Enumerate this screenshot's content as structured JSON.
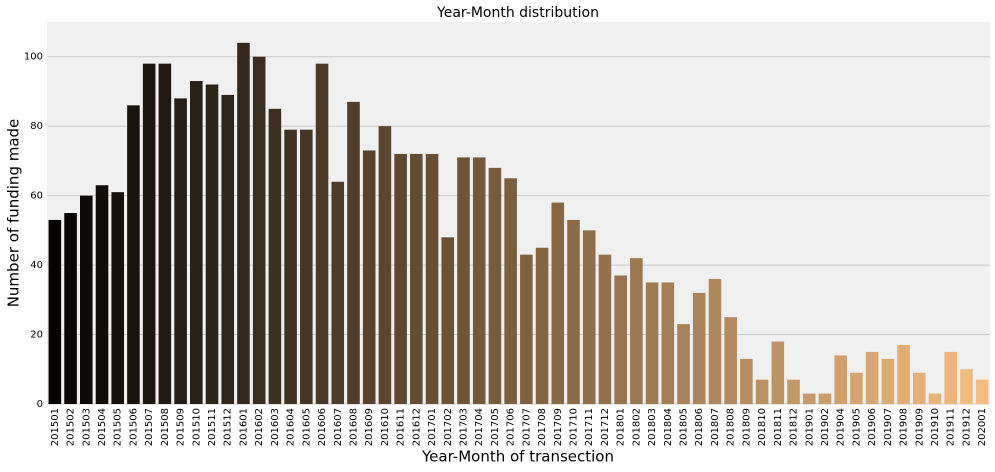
{
  "chart_data": {
    "type": "bar",
    "title": "Year-Month distribution",
    "xlabel": "Year-Month of transection",
    "ylabel": "Number of funding made",
    "categories": [
      "201501",
      "201502",
      "201503",
      "201504",
      "201505",
      "201506",
      "201507",
      "201508",
      "201509",
      "201510",
      "201511",
      "201512",
      "201601",
      "201602",
      "201603",
      "201604",
      "201605",
      "201606",
      "201607",
      "201608",
      "201609",
      "201610",
      "201611",
      "201612",
      "201701",
      "201702",
      "201703",
      "201704",
      "201705",
      "201706",
      "201707",
      "201708",
      "201709",
      "201710",
      "201711",
      "201712",
      "201801",
      "201802",
      "201803",
      "201804",
      "201805",
      "201806",
      "201807",
      "201808",
      "201809",
      "201810",
      "201811",
      "201812",
      "201901",
      "201902",
      "201904",
      "201905",
      "201906",
      "201907",
      "201908",
      "201909",
      "201910",
      "201911",
      "201912",
      "202001"
    ],
    "values": [
      53,
      55,
      60,
      63,
      61,
      86,
      98,
      98,
      88,
      93,
      92,
      89,
      104,
      100,
      85,
      79,
      79,
      98,
      64,
      87,
      73,
      80,
      72,
      72,
      72,
      48,
      71,
      71,
      68,
      65,
      43,
      45,
      58,
      53,
      50,
      43,
      37,
      42,
      35,
      35,
      23,
      32,
      36,
      25,
      13,
      7,
      18,
      7,
      3,
      3,
      14,
      9,
      15,
      13,
      17,
      9,
      3,
      15,
      10,
      7
    ],
    "palette": [
      "#050302",
      "#f4bd80"
    ],
    "ylim": [
      0,
      110
    ],
    "yticks": [
      0,
      20,
      40,
      60,
      80,
      100
    ],
    "grid": true
  }
}
